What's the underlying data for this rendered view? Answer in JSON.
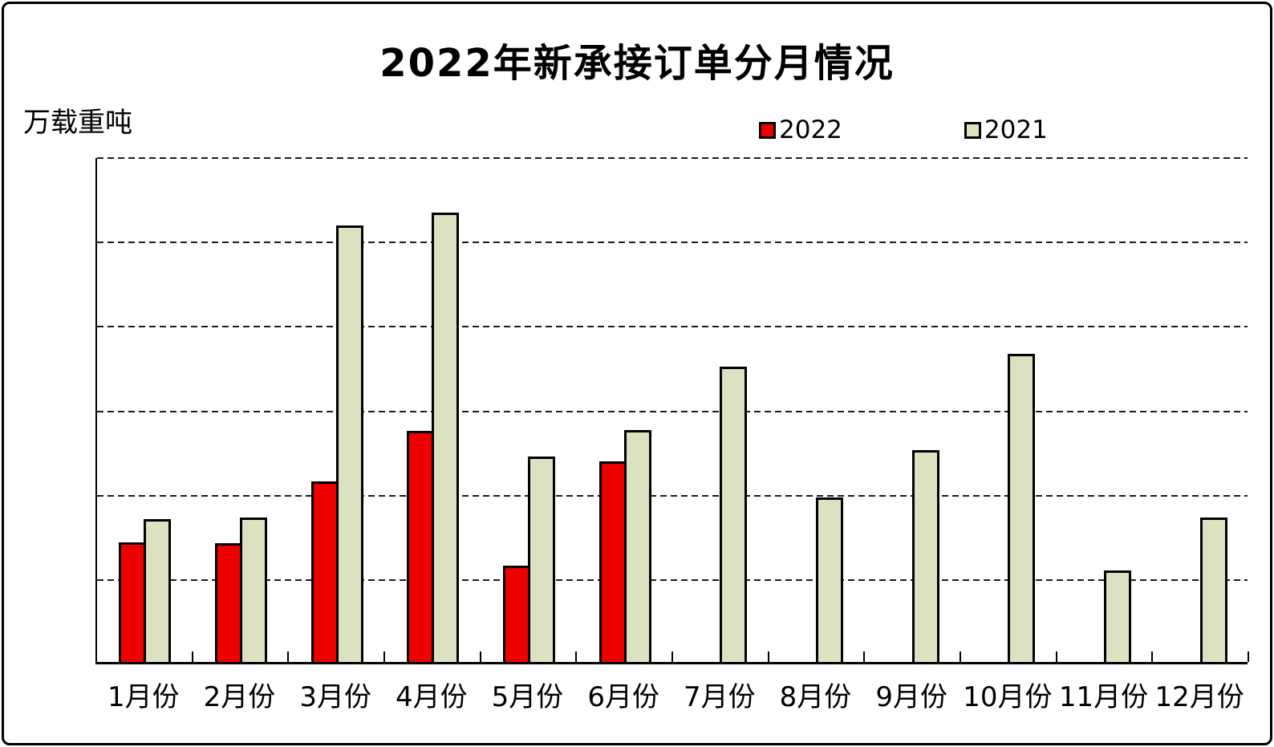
{
  "title": "2022年新承接订单分月情况",
  "unit_label": "万载重吨",
  "legend": {
    "items": [
      {
        "label": "2022",
        "color": "#ee0000"
      },
      {
        "label": "2021",
        "color": "#dbe2bf"
      }
    ]
  },
  "colors": {
    "series_2022_fill": "#ee0000",
    "series_2021_fill": "#dbe2bf",
    "bar_border": "#000000",
    "gridline": "#1c1c1c",
    "frame_border": "#000000",
    "background": "#ffffff"
  },
  "chart_data": {
    "type": "bar",
    "title": "2022年新承接订单分月情况",
    "xlabel": "",
    "ylabel": "万载重吨",
    "categories": [
      "1月份",
      "2月份",
      "3月份",
      "4月份",
      "5月份",
      "6月份",
      "7月份",
      "8月份",
      "9月份",
      "10月份",
      "11月份",
      "12月份"
    ],
    "series": [
      {
        "name": "2022",
        "color": "#ee0000",
        "values": [
          283,
          281,
          428,
          547,
          228,
          475,
          null,
          null,
          null,
          null,
          null,
          null
        ]
      },
      {
        "name": "2021",
        "color": "#dbe2bf",
        "values": [
          339,
          342,
          1035,
          1065,
          487,
          549,
          699,
          390,
          503,
          731,
          217,
          342
        ]
      }
    ],
    "ylim": [
      0,
      1200
    ],
    "yticks": [
      0,
      200,
      400,
      600,
      800,
      1000,
      1200
    ],
    "grid": "horizontal-dashed",
    "legend_position": "top-right"
  }
}
